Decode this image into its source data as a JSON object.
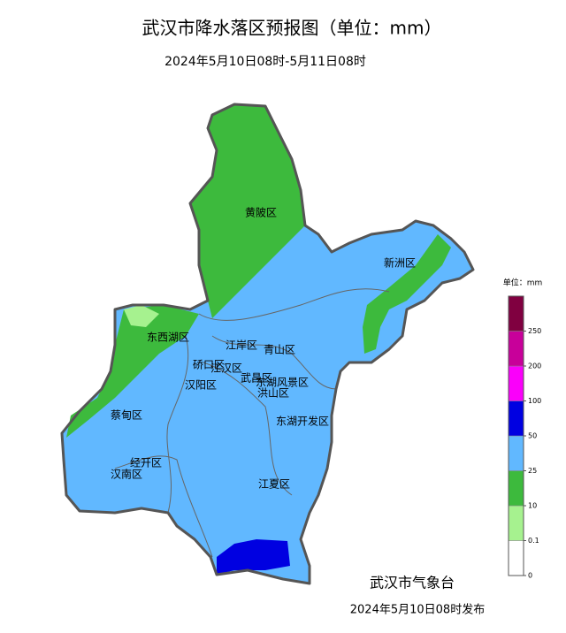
{
  "header": {
    "title": "武汉市降水落区预报图（单位：mm）",
    "subtitle": "2024年5月10日08时-5月11日08时"
  },
  "districts": [
    "黄陂区",
    "新洲区",
    "东西湖区",
    "江岸区",
    "青山区",
    "硚口区",
    "江汉区",
    "汉阳区",
    "武昌区",
    "东湖风景区",
    "洪山区",
    "蔡甸区",
    "东湖开发区",
    "经开区",
    "汉南区",
    "江夏区"
  ],
  "legend": {
    "title": "单位：mm",
    "ticks": [
      "0",
      "0.1",
      "10",
      "25",
      "50",
      "100",
      "200",
      "250"
    ],
    "colors": [
      "#ffffff",
      "#a6f28f",
      "#3dba3d",
      "#61b8ff",
      "#0000e1",
      "#fa00fa",
      "#c8009a",
      "#800040"
    ]
  },
  "footer": {
    "issuer": "武汉市气象台",
    "issued": "2024年5月10日08时发布"
  }
}
